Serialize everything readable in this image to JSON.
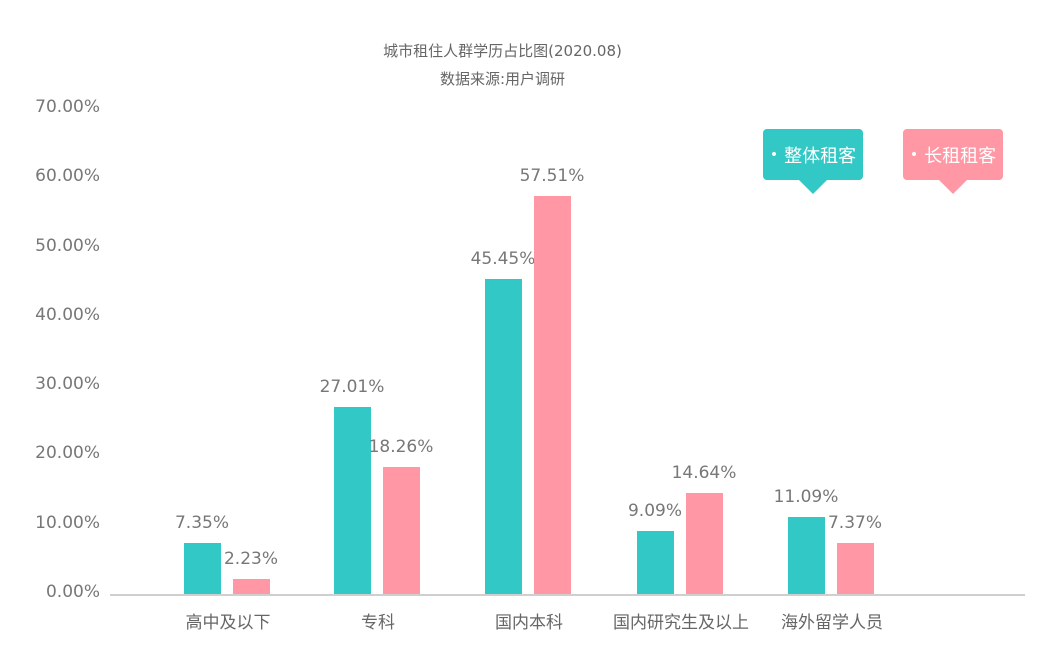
{
  "chart_data": {
    "type": "bar",
    "title": "城市租住人群学历占比图(2020.08)",
    "subtitle": "数据来源:用户调研",
    "xlabel": "",
    "ylabel": "",
    "ylim": [
      0,
      70
    ],
    "yticks": [
      "0.00%",
      "10.00%",
      "20.00%",
      "30.00%",
      "40.00%",
      "50.00%",
      "60.00%",
      "70.00%"
    ],
    "grid": false,
    "legend_position": "top-right",
    "categories": [
      "高中及以下",
      "专科",
      "国内本科",
      "国内研究生及以上",
      "海外留学人员"
    ],
    "series": [
      {
        "name": "整体租客",
        "color": "#31c8c6",
        "values": [
          7.35,
          27.01,
          45.45,
          9.09,
          11.09
        ],
        "labels": [
          "7.35%",
          "27.01%",
          "45.45%",
          "9.09%",
          "11.09%"
        ]
      },
      {
        "name": "长租租客",
        "color": "#ff98a4",
        "values": [
          2.23,
          18.26,
          57.51,
          14.64,
          7.37
        ],
        "labels": [
          "2.23%",
          "18.26%",
          "57.51%",
          "14.64%",
          "7.37%"
        ]
      }
    ]
  },
  "legend": {
    "items": [
      {
        "label": "整体租客",
        "bullet": "•",
        "color": "#31c8c6"
      },
      {
        "label": "长租租客",
        "bullet": "•",
        "color": "#ff98a4"
      }
    ]
  }
}
